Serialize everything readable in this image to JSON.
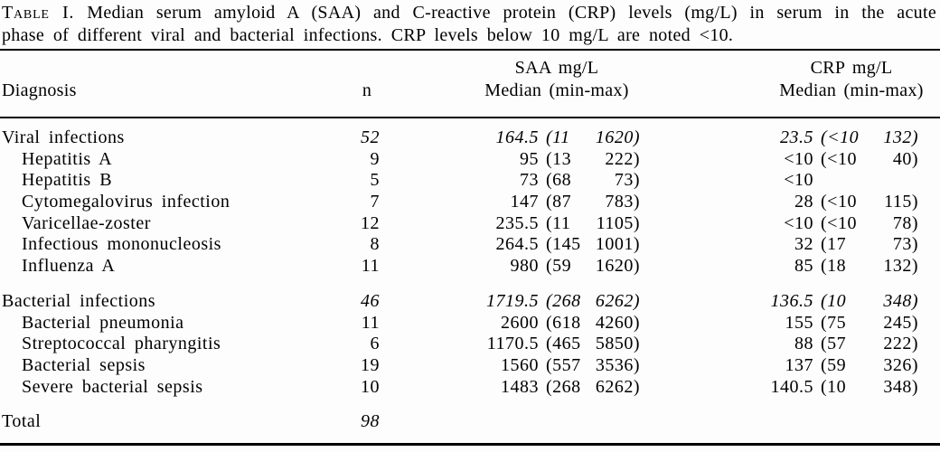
{
  "caption": {
    "label": "Table I.",
    "line1_rest": "Median serum amyloid A (SAA) and C-reactive protein (CRP) levels (mg/L) in serum in the acute",
    "line2": "phase of different viral and bacterial infections. CRP levels below 10 mg/L are noted <10."
  },
  "header": {
    "diagnosis": "Diagnosis",
    "n": "n",
    "saa_line1": "SAA mg/L",
    "saa_line2": "Median (min-max)",
    "crp_line1": "CRP mg/L",
    "crp_line2": "Median (min-max)"
  },
  "table": {
    "rows": [
      {
        "label": "Viral infections",
        "n": "52",
        "saa_median": "164.5",
        "saa_min": "(11",
        "saa_max": "1620)",
        "crp_median": "23.5",
        "crp_min": "(<10",
        "crp_max": "132)",
        "level": 0,
        "italic_values": true,
        "gap_before": false
      },
      {
        "label": "Hepatitis A",
        "n": "9",
        "saa_median": "95",
        "saa_min": "(13",
        "saa_max": "222)",
        "crp_median": "<10",
        "crp_min": "(<10",
        "crp_max": "40)",
        "level": 1,
        "italic_values": false,
        "gap_before": false
      },
      {
        "label": "Hepatitis B",
        "n": "5",
        "saa_median": "73",
        "saa_min": "(68",
        "saa_max": "73)",
        "crp_median": "<10",
        "crp_min": "",
        "crp_max": "",
        "level": 1,
        "italic_values": false,
        "gap_before": false
      },
      {
        "label": "Cytomegalovirus infection",
        "n": "7",
        "saa_median": "147",
        "saa_min": "(87",
        "saa_max": "783)",
        "crp_median": "28",
        "crp_min": "(<10",
        "crp_max": "115)",
        "level": 1,
        "italic_values": false,
        "gap_before": false
      },
      {
        "label": "Varicellae-zoster",
        "n": "12",
        "saa_median": "235.5",
        "saa_min": "(11",
        "saa_max": "1105)",
        "crp_median": "<10",
        "crp_min": "(<10",
        "crp_max": "78)",
        "level": 1,
        "italic_values": false,
        "gap_before": false
      },
      {
        "label": "Infectious mononucleosis",
        "n": "8",
        "saa_median": "264.5",
        "saa_min": "(145",
        "saa_max": "1001)",
        "crp_median": "32",
        "crp_min": "(17",
        "crp_max": "73)",
        "level": 1,
        "italic_values": false,
        "gap_before": false
      },
      {
        "label": "Influenza A",
        "n": "11",
        "saa_median": "980",
        "saa_min": "(59",
        "saa_max": "1620)",
        "crp_median": "85",
        "crp_min": "(18",
        "crp_max": "132)",
        "level": 1,
        "italic_values": false,
        "gap_before": false
      },
      {
        "label": "Bacterial infections",
        "n": "46",
        "saa_median": "1719.5",
        "saa_min": "(268",
        "saa_max": "6262)",
        "crp_median": "136.5",
        "crp_min": "(10",
        "crp_max": "348)",
        "level": 0,
        "italic_values": true,
        "gap_before": true
      },
      {
        "label": "Bacterial pneumonia",
        "n": "11",
        "saa_median": "2600",
        "saa_min": "(618",
        "saa_max": "4260)",
        "crp_median": "155",
        "crp_min": "(75",
        "crp_max": "245)",
        "level": 1,
        "italic_values": false,
        "gap_before": false
      },
      {
        "label": "Streptococcal pharyngitis",
        "n": "6",
        "saa_median": "1170.5",
        "saa_min": "(465",
        "saa_max": "5850)",
        "crp_median": "88",
        "crp_min": "(57",
        "crp_max": "222)",
        "level": 1,
        "italic_values": false,
        "gap_before": false
      },
      {
        "label": "Bacterial sepsis",
        "n": "19",
        "saa_median": "1560",
        "saa_min": "(557",
        "saa_max": "3536)",
        "crp_median": "137",
        "crp_min": "(59",
        "crp_max": "326)",
        "level": 1,
        "italic_values": false,
        "gap_before": false
      },
      {
        "label": "Severe bacterial sepsis",
        "n": "10",
        "saa_median": "1483",
        "saa_min": "(268",
        "saa_max": "6262)",
        "crp_median": "140.5",
        "crp_min": "(10",
        "crp_max": "348)",
        "level": 1,
        "italic_values": false,
        "gap_before": false
      },
      {
        "label": "Total",
        "n": "98",
        "saa_median": "",
        "saa_min": "",
        "saa_max": "",
        "crp_median": "",
        "crp_min": "",
        "crp_max": "",
        "level": 0,
        "italic_values": true,
        "gap_before": true
      }
    ]
  }
}
